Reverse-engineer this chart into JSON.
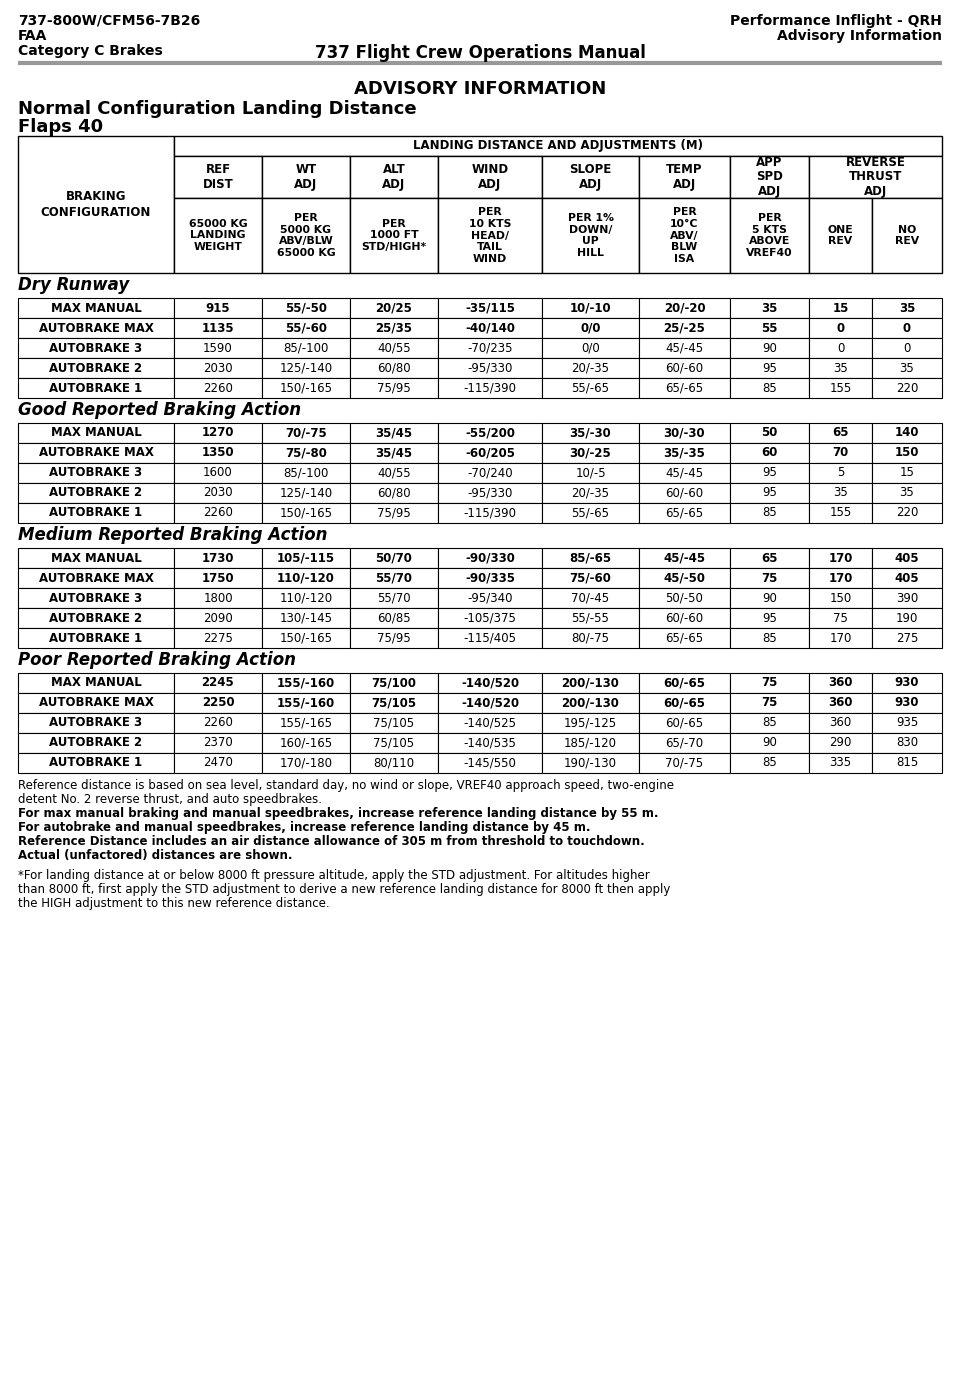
{
  "header_left": [
    "737-800W/CFM56-7B26",
    "FAA",
    "Category C Brakes"
  ],
  "header_center": "737 Flight Crew Operations Manual",
  "header_right": [
    "Performance Inflight - QRH",
    "Advisory Information"
  ],
  "advisory_title": "ADVISORY INFORMATION",
  "chart_title1": "Normal Configuration Landing Distance",
  "chart_title2": "Flaps 40",
  "col_header1": "LANDING DISTANCE AND ADJUSTMENTS (M)",
  "sections": [
    {
      "title": "Dry Runway",
      "rows": [
        [
          "MAX MANUAL",
          "915",
          "55/-50",
          "20/25",
          "-35/115",
          "10/-10",
          "20/-20",
          "35",
          "15",
          "35"
        ],
        [
          "AUTOBRAKE MAX",
          "1135",
          "55/-60",
          "25/35",
          "-40/140",
          "0/0",
          "25/-25",
          "55",
          "0",
          "0"
        ],
        [
          "AUTOBRAKE 3",
          "1590",
          "85/-100",
          "40/55",
          "-70/235",
          "0/0",
          "45/-45",
          "90",
          "0",
          "0"
        ],
        [
          "AUTOBRAKE 2",
          "2030",
          "125/-140",
          "60/80",
          "-95/330",
          "20/-35",
          "60/-60",
          "95",
          "35",
          "35"
        ],
        [
          "AUTOBRAKE 1",
          "2260",
          "150/-165",
          "75/95",
          "-115/390",
          "55/-65",
          "65/-65",
          "85",
          "155",
          "220"
        ]
      ]
    },
    {
      "title": "Good Reported Braking Action",
      "rows": [
        [
          "MAX MANUAL",
          "1270",
          "70/-75",
          "35/45",
          "-55/200",
          "35/-30",
          "30/-30",
          "50",
          "65",
          "140"
        ],
        [
          "AUTOBRAKE MAX",
          "1350",
          "75/-80",
          "35/45",
          "-60/205",
          "30/-25",
          "35/-35",
          "60",
          "70",
          "150"
        ],
        [
          "AUTOBRAKE 3",
          "1600",
          "85/-100",
          "40/55",
          "-70/240",
          "10/-5",
          "45/-45",
          "95",
          "5",
          "15"
        ],
        [
          "AUTOBRAKE 2",
          "2030",
          "125/-140",
          "60/80",
          "-95/330",
          "20/-35",
          "60/-60",
          "95",
          "35",
          "35"
        ],
        [
          "AUTOBRAKE 1",
          "2260",
          "150/-165",
          "75/95",
          "-115/390",
          "55/-65",
          "65/-65",
          "85",
          "155",
          "220"
        ]
      ]
    },
    {
      "title": "Medium Reported Braking Action",
      "rows": [
        [
          "MAX MANUAL",
          "1730",
          "105/-115",
          "50/70",
          "-90/330",
          "85/-65",
          "45/-45",
          "65",
          "170",
          "405"
        ],
        [
          "AUTOBRAKE MAX",
          "1750",
          "110/-120",
          "55/70",
          "-90/335",
          "75/-60",
          "45/-50",
          "75",
          "170",
          "405"
        ],
        [
          "AUTOBRAKE 3",
          "1800",
          "110/-120",
          "55/70",
          "-95/340",
          "70/-45",
          "50/-50",
          "90",
          "150",
          "390"
        ],
        [
          "AUTOBRAKE 2",
          "2090",
          "130/-145",
          "60/85",
          "-105/375",
          "55/-55",
          "60/-60",
          "95",
          "75",
          "190"
        ],
        [
          "AUTOBRAKE 1",
          "2275",
          "150/-165",
          "75/95",
          "-115/405",
          "80/-75",
          "65/-65",
          "85",
          "170",
          "275"
        ]
      ]
    },
    {
      "title": "Poor Reported Braking Action",
      "rows": [
        [
          "MAX MANUAL",
          "2245",
          "155/-160",
          "75/100",
          "-140/520",
          "200/-130",
          "60/-65",
          "75",
          "360",
          "930"
        ],
        [
          "AUTOBRAKE MAX",
          "2250",
          "155/-160",
          "75/105",
          "-140/520",
          "200/-130",
          "60/-65",
          "75",
          "360",
          "930"
        ],
        [
          "AUTOBRAKE 3",
          "2260",
          "155/-165",
          "75/105",
          "-140/525",
          "195/-125",
          "60/-65",
          "85",
          "360",
          "935"
        ],
        [
          "AUTOBRAKE 2",
          "2370",
          "160/-165",
          "75/105",
          "-140/535",
          "185/-120",
          "65/-70",
          "90",
          "290",
          "830"
        ],
        [
          "AUTOBRAKE 1",
          "2470",
          "170/-180",
          "80/110",
          "-145/550",
          "190/-130",
          "70/-75",
          "85",
          "335",
          "815"
        ]
      ]
    }
  ],
  "footnotes": [
    "Reference distance is based on sea level, standard day, no wind or slope, VREF40 approach speed, two-engine",
    "detent No. 2 reverse thrust, and auto speedbrakes.",
    "For max manual braking and manual speedbrakes, increase reference landing distance by 55 m.",
    "For autobrake and manual speedbrakes, increase reference landing distance by 45 m.",
    "Reference Distance includes an air distance allowance of 305 m from threshold to touchdown.",
    "Actual (unfactored) distances are shown."
  ],
  "footnote2_lines": [
    "*For landing distance at or below 8000 ft pressure altitude, apply the STD adjustment. For altitudes higher",
    "than 8000 ft, first apply the STD adjustment to derive a new reference landing distance for 8000 ft then apply",
    "the HIGH adjustment to this new reference distance."
  ],
  "bold_footnotes": [
    2,
    3,
    4,
    5
  ],
  "page_bg": "#ffffff",
  "line_color": "#000000",
  "header_sep_color": "#aaaaaa"
}
